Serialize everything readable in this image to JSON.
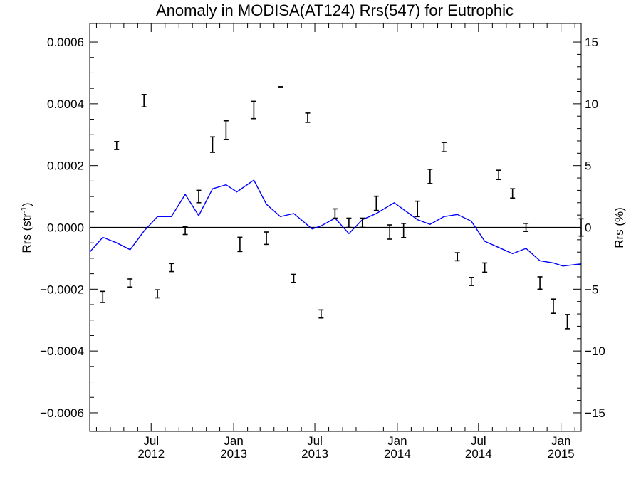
{
  "chart_data": {
    "type": "line",
    "title": "Anomaly in MODISA(AT124) Rrs(547) for Eutrophic",
    "ylabel_left": "Rrs (str",
    "ylabel_left_sup": "-1",
    "ylabel_left_close": ")",
    "ylabel_right": "Rrs (%)",
    "xlim": [
      "2012-02-15",
      "2015-02-15"
    ],
    "ylim_left": [
      -0.00066,
      0.00066
    ],
    "ylim_right": [
      -16.5,
      16.5
    ],
    "grid": false,
    "zero_line": true,
    "y_ticks_left": [
      {
        "value": -0.0006,
        "label": "−0.0006"
      },
      {
        "value": -0.0004,
        "label": "−0.0004"
      },
      {
        "value": -0.0002,
        "label": "−0.0002"
      },
      {
        "value": 0,
        "label": "0.0000"
      },
      {
        "value": 0.0002,
        "label": "0.0002"
      },
      {
        "value": 0.0004,
        "label": "0.0004"
      },
      {
        "value": 0.0006,
        "label": "0.0006"
      }
    ],
    "y_ticks_right": [
      {
        "value": -15,
        "label": "−15"
      },
      {
        "value": -10,
        "label": "−10"
      },
      {
        "value": -5,
        "label": "−5"
      },
      {
        "value": 0,
        "label": "0"
      },
      {
        "value": 5,
        "label": "5"
      },
      {
        "value": 10,
        "label": "10"
      },
      {
        "value": 15,
        "label": "15"
      }
    ],
    "x_ticks": [
      {
        "date": "2012-07-01",
        "month": "Jul",
        "year": "2012"
      },
      {
        "date": "2013-01-01",
        "month": "Jan",
        "year": "2013"
      },
      {
        "date": "2013-07-01",
        "month": "Jul",
        "year": "2013"
      },
      {
        "date": "2014-01-01",
        "month": "Jan",
        "year": "2014"
      },
      {
        "date": "2014-07-01",
        "month": "Jul",
        "year": "2014"
      },
      {
        "date": "2015-01-01",
        "month": "Jan",
        "year": "2015"
      }
    ],
    "series": [
      {
        "kind": "errorbar",
        "axis": "left",
        "color": "#000000",
        "points": [
          {
            "x": "2012-03-15",
            "y": -0.000225,
            "err": 1.8e-05
          },
          {
            "x": "2012-04-15",
            "y": 0.000265,
            "err": 1.3e-05
          },
          {
            "x": "2012-05-15",
            "y": -0.00018,
            "err": 1.3e-05
          },
          {
            "x": "2012-06-15",
            "y": 0.00041,
            "err": 2e-05
          },
          {
            "x": "2012-07-15",
            "y": -0.000215,
            "err": 1.3e-05
          },
          {
            "x": "2012-08-15",
            "y": -0.00013,
            "err": 1.3e-05
          },
          {
            "x": "2012-09-15",
            "y": -1e-05,
            "err": 1.3e-05
          },
          {
            "x": "2012-10-15",
            "y": 0.0001,
            "err": 2e-05
          },
          {
            "x": "2012-11-15",
            "y": 0.000268,
            "err": 2.5e-05
          },
          {
            "x": "2012-12-15",
            "y": 0.000315,
            "err": 3e-05
          },
          {
            "x": "2013-01-15",
            "y": -5.5e-05,
            "err": 2.3e-05
          },
          {
            "x": "2013-02-15",
            "y": 0.00038,
            "err": 2.8e-05
          },
          {
            "x": "2013-03-15",
            "y": -3.5e-05,
            "err": 2e-05
          },
          {
            "x": "2013-04-15",
            "y": 0.000455,
            "err": 0.0
          },
          {
            "x": "2013-05-15",
            "y": -0.000165,
            "err": 1.3e-05
          },
          {
            "x": "2013-06-15",
            "y": 0.000355,
            "err": 1.5e-05
          },
          {
            "x": "2013-07-15",
            "y": -0.00028,
            "err": 1.3e-05
          },
          {
            "x": "2013-08-15",
            "y": 4.5e-05,
            "err": 1.5e-05
          },
          {
            "x": "2013-09-15",
            "y": 1.5e-05,
            "err": 1.5e-05
          },
          {
            "x": "2013-10-15",
            "y": 1.5e-05,
            "err": 1.5e-05
          },
          {
            "x": "2013-11-15",
            "y": 7.8e-05,
            "err": 2.3e-05
          },
          {
            "x": "2013-12-15",
            "y": -1.5e-05,
            "err": 2.3e-05
          },
          {
            "x": "2014-01-15",
            "y": -1e-05,
            "err": 2.3e-05
          },
          {
            "x": "2014-02-15",
            "y": 6e-05,
            "err": 2.5e-05
          },
          {
            "x": "2014-03-15",
            "y": 0.000165,
            "err": 2.3e-05
          },
          {
            "x": "2014-04-15",
            "y": 0.00026,
            "err": 1.5e-05
          },
          {
            "x": "2014-05-15",
            "y": -9.5e-05,
            "err": 1.3e-05
          },
          {
            "x": "2014-06-15",
            "y": -0.000175,
            "err": 1.3e-05
          },
          {
            "x": "2014-07-15",
            "y": -0.00013,
            "err": 1.5e-05
          },
          {
            "x": "2014-08-15",
            "y": 0.00017,
            "err": 1.5e-05
          },
          {
            "x": "2014-09-15",
            "y": 0.00011,
            "err": 1.5e-05
          },
          {
            "x": "2014-10-15",
            "y": 0.0,
            "err": 1.3e-05
          },
          {
            "x": "2014-11-15",
            "y": -0.00018,
            "err": 2e-05
          },
          {
            "x": "2014-12-15",
            "y": -0.000255,
            "err": 2.3e-05
          },
          {
            "x": "2015-01-15",
            "y": -0.000305,
            "err": 2.3e-05
          },
          {
            "x": "2015-02-15",
            "y": 0.0,
            "err": 2.8e-05
          }
        ]
      },
      {
        "kind": "line",
        "axis": "left",
        "color": "#0000ff",
        "points": [
          {
            "x": "2012-02-15",
            "y": -8e-05
          },
          {
            "x": "2012-03-15",
            "y": -3.2e-05
          },
          {
            "x": "2012-04-15",
            "y": -5e-05
          },
          {
            "x": "2012-05-15",
            "y": -7.2e-05
          },
          {
            "x": "2012-06-15",
            "y": -1.2e-05
          },
          {
            "x": "2012-07-15",
            "y": 3.5e-05
          },
          {
            "x": "2012-08-15",
            "y": 3.5e-05
          },
          {
            "x": "2012-09-15",
            "y": 0.000107
          },
          {
            "x": "2012-10-15",
            "y": 3.8e-05
          },
          {
            "x": "2012-11-15",
            "y": 0.000125
          },
          {
            "x": "2012-12-15",
            "y": 0.000138
          },
          {
            "x": "2013-01-08",
            "y": 0.000115
          },
          {
            "x": "2013-02-15",
            "y": 0.000153
          },
          {
            "x": "2013-03-15",
            "y": 7.5e-05
          },
          {
            "x": "2013-04-15",
            "y": 3.5e-05
          },
          {
            "x": "2013-05-15",
            "y": 4.5e-05
          },
          {
            "x": "2013-06-25",
            "y": -5e-06
          },
          {
            "x": "2013-07-15",
            "y": 5e-06
          },
          {
            "x": "2013-08-15",
            "y": 3e-05
          },
          {
            "x": "2013-09-15",
            "y": -2e-05
          },
          {
            "x": "2013-10-15",
            "y": 2.5e-05
          },
          {
            "x": "2013-11-15",
            "y": 4.5e-05
          },
          {
            "x": "2013-12-25",
            "y": 8e-05
          },
          {
            "x": "2014-02-15",
            "y": 2.5e-05
          },
          {
            "x": "2014-03-15",
            "y": 1e-05
          },
          {
            "x": "2014-04-15",
            "y": 3.5e-05
          },
          {
            "x": "2014-05-15",
            "y": 4.2e-05
          },
          {
            "x": "2014-06-15",
            "y": 2e-05
          },
          {
            "x": "2014-07-15",
            "y": -4.5e-05
          },
          {
            "x": "2014-08-15",
            "y": -6.5e-05
          },
          {
            "x": "2014-09-15",
            "y": -8.5e-05
          },
          {
            "x": "2014-10-15",
            "y": -6.8e-05
          },
          {
            "x": "2014-11-15",
            "y": -0.000108
          },
          {
            "x": "2014-12-15",
            "y": -0.000115
          },
          {
            "x": "2015-01-05",
            "y": -0.000125
          },
          {
            "x": "2015-02-15",
            "y": -0.000118
          }
        ]
      }
    ]
  }
}
